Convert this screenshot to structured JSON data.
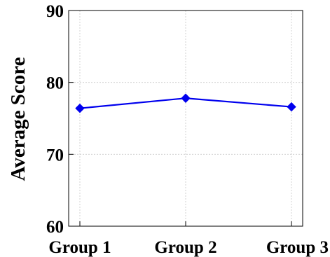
{
  "chart_data": {
    "type": "line",
    "categories": [
      "Group 1",
      "Group 2",
      "Group 3"
    ],
    "series": [
      {
        "values": [
          76.4,
          77.8,
          76.6
        ],
        "color": "#0000ee",
        "marker": "diamond"
      }
    ],
    "xlabel": "",
    "ylabel": "Average Score",
    "ylim": [
      60,
      90
    ],
    "yticks": [
      60,
      70,
      80,
      90
    ],
    "grid": true,
    "legend": "none"
  }
}
